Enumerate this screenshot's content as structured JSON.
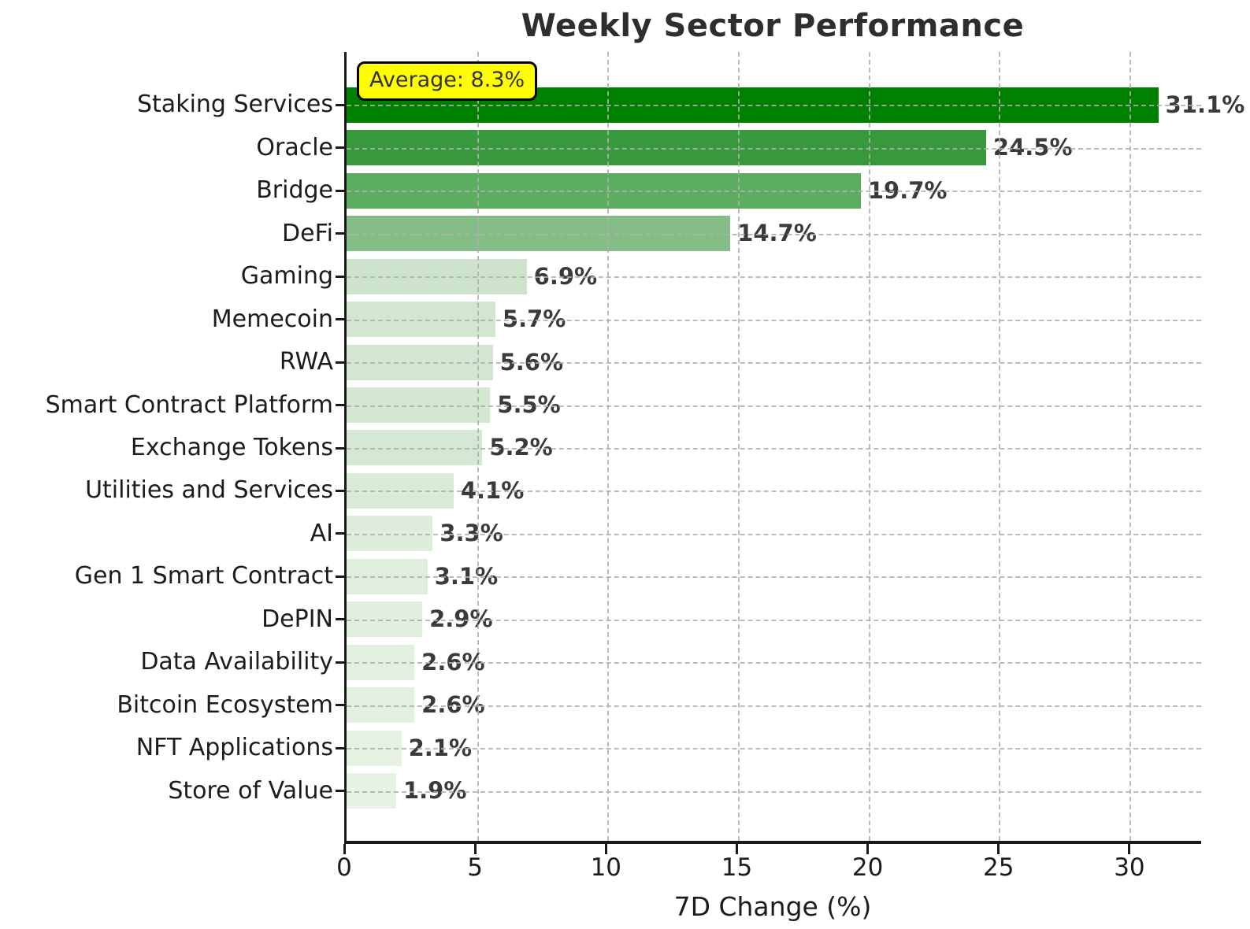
{
  "chart_data": {
    "type": "bar",
    "orientation": "horizontal",
    "title": "Weekly Sector Performance",
    "xlabel": "7D Change (%)",
    "ylabel": "",
    "categories": [
      "Staking Services",
      "Oracle",
      "Bridge",
      "DeFi",
      "Gaming",
      "Memecoin",
      "RWA",
      "Smart Contract Platform",
      "Exchange Tokens",
      "Utilities and Services",
      "AI",
      "Gen 1 Smart Contract",
      "DePIN",
      "Data Availability",
      "Bitcoin Ecosystem",
      "NFT Applications",
      "Store of Value"
    ],
    "values": [
      31.1,
      24.5,
      19.7,
      14.7,
      6.9,
      5.7,
      5.6,
      5.5,
      5.2,
      4.1,
      3.3,
      3.1,
      2.9,
      2.6,
      2.6,
      2.1,
      1.9
    ],
    "value_labels": [
      "31.1%",
      "24.5%",
      "19.7%",
      "14.7%",
      "6.9%",
      "5.7%",
      "5.6%",
      "5.5%",
      "5.2%",
      "4.1%",
      "3.3%",
      "3.1%",
      "2.9%",
      "2.6%",
      "2.6%",
      "2.1%",
      "1.9%"
    ],
    "bar_colors": [
      "#008000",
      "#37993c",
      "#5cad5f",
      "#84bd85",
      "#cde3cb",
      "#d2e6d0",
      "#d3e6d1",
      "#d3e7d1",
      "#d5e8d3",
      "#daebd7",
      "#dfeedc",
      "#e0eedd",
      "#e1efde",
      "#e2f0df",
      "#e2f0df",
      "#e5f1e1",
      "#e6f2e3"
    ],
    "xlim": [
      0,
      32.74
    ],
    "xticks": [
      0,
      5,
      10,
      15,
      20,
      25,
      30
    ],
    "grid": {
      "style": "dashed",
      "color": "#afafaf",
      "vertical": true,
      "horizontal": true
    },
    "legend": "none",
    "annotation": {
      "text": "Average: 8.3%",
      "bg_color": "#ffff00",
      "border_color": "#000000",
      "text_color": "#333333"
    }
  }
}
